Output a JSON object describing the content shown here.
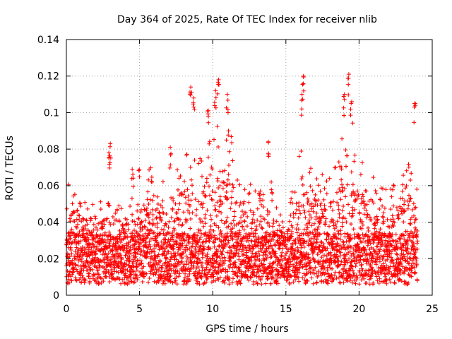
{
  "chart_data": {
    "type": "scatter",
    "title": "Day 364 of 2025, Rate Of TEC Index for receiver nlib",
    "xlabel": "GPS time / hours",
    "ylabel": "ROTI / TECUs",
    "xlim": [
      0,
      25
    ],
    "ylim": [
      0,
      0.14
    ],
    "x_ticks": [
      0,
      5,
      10,
      15,
      20,
      25
    ],
    "x_tick_labels": [
      "0",
      "5",
      "10",
      "15",
      "20",
      "25"
    ],
    "y_ticks": [
      0,
      0.02,
      0.04,
      0.06,
      0.08,
      0.1,
      0.12,
      0.14
    ],
    "y_tick_labels": [
      "0",
      "0.02",
      "0.04",
      "0.06",
      "0.08",
      "0.1",
      "0.12",
      "0.14"
    ],
    "grid": true,
    "marker": "plus",
    "marker_color": "#ff0000",
    "series": [
      {
        "name": "ROTI",
        "x_range": [
          0,
          24
        ],
        "baseline_mean": 0.018,
        "envelope_hourly_max": [
          0.065,
          0.055,
          0.05,
          0.055,
          0.05,
          0.07,
          0.075,
          0.06,
          0.085,
          0.075,
          0.1,
          0.1,
          0.065,
          0.06,
          0.05,
          0.045,
          0.08,
          0.07,
          0.065,
          0.09,
          0.075,
          0.07,
          0.06,
          0.075,
          0.07
        ],
        "spikes": [
          {
            "x": 3.0,
            "y": 0.083
          },
          {
            "x": 2.9,
            "y": 0.078
          },
          {
            "x": 8.5,
            "y": 0.114
          },
          {
            "x": 8.7,
            "y": 0.108
          },
          {
            "x": 10.2,
            "y": 0.112
          },
          {
            "x": 10.4,
            "y": 0.118
          },
          {
            "x": 11.0,
            "y": 0.11
          },
          {
            "x": 16.2,
            "y": 0.12
          },
          {
            "x": 16.1,
            "y": 0.11
          },
          {
            "x": 19.0,
            "y": 0.11
          },
          {
            "x": 19.3,
            "y": 0.121
          },
          {
            "x": 19.5,
            "y": 0.106
          },
          {
            "x": 23.8,
            "y": 0.105
          },
          {
            "x": 13.8,
            "y": 0.084
          },
          {
            "x": 14.0,
            "y": 0.062
          },
          {
            "x": 7.1,
            "y": 0.081
          },
          {
            "x": 4.5,
            "y": 0.069
          },
          {
            "x": 9.7,
            "y": 0.101
          }
        ]
      }
    ]
  }
}
